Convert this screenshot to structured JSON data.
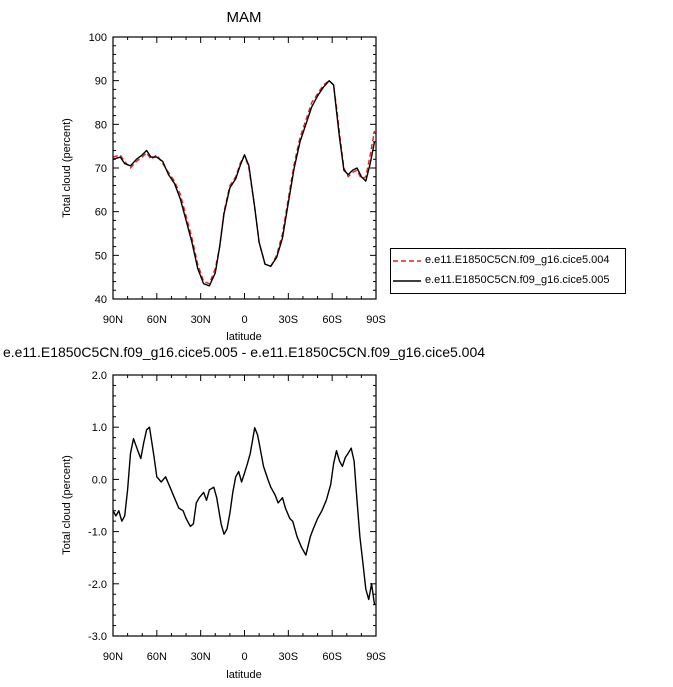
{
  "chart_data": [
    {
      "type": "line",
      "title": "MAM",
      "xlabel": "latitude",
      "ylabel": "Total cloud (percent)",
      "xticks": [
        "90N",
        "60N",
        "30N",
        "0",
        "30S",
        "60S",
        "90S"
      ],
      "xlim": [
        90,
        -90
      ],
      "ylim": [
        40,
        100
      ],
      "yticks": [
        "40",
        "50",
        "60",
        "70",
        "80",
        "90",
        "100"
      ],
      "legend_position": "right",
      "series": [
        {
          "name": "e.e11.E1850C5CN.f09_g16.cice5.004",
          "color": "#e0231e",
          "style": "dashed",
          "x": [
            90,
            85,
            82,
            78,
            74,
            70,
            67,
            64,
            60,
            56,
            52,
            48,
            44,
            40,
            36,
            32,
            28,
            24,
            20,
            17,
            14,
            10,
            6,
            3,
            0,
            -3,
            -7,
            -10,
            -14,
            -18,
            -22,
            -26,
            -30,
            -34,
            -38,
            -42,
            -46,
            -50,
            -54,
            -58,
            -61,
            -63,
            -65,
            -68,
            -71,
            -74,
            -77,
            -80,
            -83,
            -86,
            -89
          ],
          "values": [
            72.5,
            73,
            71.5,
            70,
            71.5,
            72.5,
            73.5,
            72,
            73,
            71,
            69,
            67,
            64,
            59,
            54,
            48,
            44,
            43.5,
            47,
            52,
            60,
            66,
            68,
            71,
            73,
            70,
            61,
            53,
            48,
            47.5,
            50,
            55,
            63,
            71,
            77,
            81,
            85,
            87,
            89,
            90,
            89,
            84,
            78,
            70,
            68,
            69,
            69.5,
            67.5,
            68,
            73,
            78.5
          ]
        },
        {
          "name": "e.e11.E1850C5CN.f09_g16.cice5.005",
          "color": "#000000",
          "style": "solid",
          "x": [
            90,
            85,
            82,
            78,
            74,
            70,
            67,
            64,
            60,
            56,
            52,
            48,
            44,
            40,
            36,
            32,
            28,
            24,
            20,
            17,
            14,
            10,
            6,
            3,
            0,
            -3,
            -7,
            -10,
            -14,
            -18,
            -22,
            -26,
            -30,
            -34,
            -38,
            -42,
            -46,
            -50,
            -54,
            -58,
            -61,
            -63,
            -65,
            -68,
            -71,
            -74,
            -77,
            -80,
            -83,
            -86,
            -89
          ],
          "values": [
            72,
            72.5,
            71,
            70.5,
            72,
            73,
            74,
            72.5,
            72.5,
            71.5,
            68.5,
            66.5,
            63,
            58,
            53,
            47,
            43.5,
            43,
            46,
            52,
            59.5,
            65.5,
            67.5,
            70.5,
            73,
            70.5,
            61,
            53,
            48,
            47.5,
            49.5,
            54,
            62,
            70,
            76,
            80,
            84,
            86.5,
            88.5,
            90,
            89,
            83,
            77,
            69.5,
            68.5,
            69.5,
            70,
            68,
            67,
            71,
            76
          ]
        }
      ]
    },
    {
      "type": "line",
      "title": "e.e11.E1850C5CN.f09_g16.cice5.005 - e.e11.E1850C5CN.f09_g16.cice5.004",
      "xlabel": "latitude",
      "ylabel": "Total cloud (percent)",
      "xticks": [
        "90N",
        "60N",
        "30N",
        "0",
        "30S",
        "60S",
        "90S"
      ],
      "xlim": [
        90,
        -90
      ],
      "ylim": [
        -3,
        2
      ],
      "yticks": [
        "-3.0",
        "-2.0",
        "-1.0",
        "0.0",
        "1.0",
        "2.0"
      ],
      "series": [
        {
          "color": "#000000",
          "style": "solid",
          "x": [
            90,
            88,
            86,
            84,
            82,
            80,
            78,
            76,
            73,
            71,
            69,
            67,
            65,
            62,
            60,
            57,
            54,
            51,
            48,
            45,
            42,
            40,
            37,
            35,
            33,
            31,
            28,
            26,
            24,
            21,
            19,
            16,
            14,
            12,
            10,
            8,
            6,
            4,
            2,
            0,
            -2,
            -4,
            -7,
            -9,
            -11,
            -13,
            -16,
            -18,
            -21,
            -23,
            -26,
            -28,
            -31,
            -33,
            -36,
            -39,
            -42,
            -45,
            -47,
            -50,
            -53,
            -56,
            -59,
            -61,
            -63,
            -65,
            -67,
            -69,
            -71,
            -73,
            -75,
            -77,
            -79,
            -81,
            -83,
            -85,
            -87,
            -89
          ],
          "values": [
            -0.6,
            -0.7,
            -0.6,
            -0.8,
            -0.7,
            -0.2,
            0.5,
            0.78,
            0.55,
            0.4,
            0.7,
            0.95,
            1.0,
            0.45,
            0.05,
            -0.05,
            0.05,
            -0.15,
            -0.35,
            -0.55,
            -0.6,
            -0.75,
            -0.9,
            -0.85,
            -0.45,
            -0.35,
            -0.25,
            -0.4,
            -0.2,
            -0.15,
            -0.35,
            -0.85,
            -1.05,
            -0.95,
            -0.65,
            -0.25,
            0.05,
            0.15,
            -0.05,
            0.12,
            0.3,
            0.5,
            0.99,
            0.85,
            0.55,
            0.25,
            0.0,
            -0.15,
            -0.3,
            -0.45,
            -0.35,
            -0.55,
            -0.75,
            -0.8,
            -1.1,
            -1.3,
            -1.45,
            -1.1,
            -0.95,
            -0.75,
            -0.6,
            -0.4,
            -0.1,
            0.3,
            0.55,
            0.35,
            0.25,
            0.42,
            0.5,
            0.6,
            0.35,
            -0.4,
            -1.1,
            -1.6,
            -2.1,
            -2.3,
            -2.0,
            -2.4
          ]
        }
      ]
    }
  ]
}
